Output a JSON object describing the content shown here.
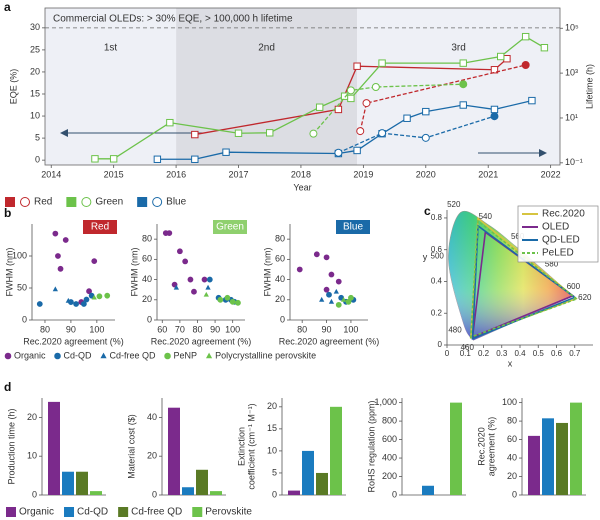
{
  "chart_data": [
    {
      "type": "line",
      "panel": "a",
      "xlabel": "Year",
      "ylabel": "EQE (%)",
      "y2label": "Lifetime (h)",
      "xlim": [
        2013.9,
        2022.15
      ],
      "xticks": [
        2014,
        2015,
        2016,
        2017,
        2018,
        2019,
        2020,
        2021,
        2022
      ],
      "ylim": [
        -1.1,
        34.5
      ],
      "yticks": [
        0,
        5,
        10,
        15,
        20,
        25,
        30
      ],
      "y2lim": [
        0.08,
        800000
      ],
      "y2log": true,
      "y2ticks": [
        {
          "value": 0.1,
          "label": "10⁻¹"
        },
        {
          "value": 10,
          "label": "10¹"
        },
        {
          "value": 1000,
          "label": "10³"
        },
        {
          "value": 100000,
          "label": "10⁵"
        }
      ],
      "eras": [
        {
          "label": "1st",
          "start": 2013.9,
          "end": 2016,
          "color": "#eef0f6"
        },
        {
          "label": "2nd",
          "start": 2016,
          "end": 2018.9,
          "color": "#dcdde3"
        },
        {
          "label": "3rd",
          "start": 2018.9,
          "end": 2022.15,
          "color": "#eef0f6"
        }
      ],
      "annotation": {
        "text": "Commercial OLEDs: > 30% EQE, > 100,000 h lifetime",
        "value": 30
      },
      "series": [
        {
          "name": "Red",
          "color": "#c0282d",
          "marker": "square",
          "line": "solid",
          "x": [
            2016.3,
            2018.6,
            2018.9,
            2021.1,
            2021.3
          ],
          "values": [
            5.8,
            11.5,
            21.3,
            20.5,
            23
          ]
        },
        {
          "color": "#c0282d",
          "marker": "circle",
          "line": "dashed",
          "axis": "y2",
          "x": [
            2018.95,
            2019.05,
            2021.6
          ],
          "values": [
            2.6,
            46,
            2300
          ]
        },
        {
          "name": "Green",
          "color": "#6cc24a",
          "marker": "square",
          "line": "solid",
          "x": [
            2014.7,
            2015,
            2015.9,
            2017,
            2017.5,
            2018.3,
            2018.7,
            2018.8,
            2019.3,
            2020.6,
            2021.2,
            2021.6,
            2021.9
          ],
          "values": [
            0.3,
            0.3,
            8.5,
            6.1,
            6.2,
            12,
            14.5,
            14,
            22,
            22,
            23.5,
            28,
            25.5
          ]
        },
        {
          "color": "#6cc24a",
          "marker": "circle",
          "line": "dashed",
          "axis": "y2",
          "x": [
            2018.2,
            2018.8,
            2019.2,
            2020.6
          ],
          "values": [
            2,
            170,
            240,
            320
          ]
        },
        {
          "name": "Blue",
          "color": "#1a6aa8",
          "marker": "square",
          "line": "solid",
          "x": [
            2015.7,
            2016.3,
            2016.8,
            2018.6,
            2018.9,
            2019.3,
            2019.7,
            2020,
            2020.6,
            2021.1,
            2021.7
          ],
          "values": [
            0.2,
            0.2,
            1.8,
            1.5,
            2.2,
            6,
            9.5,
            11,
            12.5,
            11.5,
            13.5
          ]
        },
        {
          "color": "#1a6aa8",
          "marker": "circle",
          "line": "dashed",
          "axis": "y2",
          "x": [
            2018.6,
            2019.3,
            2020,
            2021.1
          ],
          "values": [
            0.28,
            2.1,
            1.3,
            12
          ]
        }
      ]
    },
    {
      "type": "scatter_group",
      "panel": "b",
      "xlabel": "Rec.2020 agreement (%)",
      "ylabel": "FWHM (nm)",
      "series": [
        {
          "name": "Organic",
          "color": "#7b2a8c",
          "marker": "circle"
        },
        {
          "name": "Cd-QD",
          "color": "#1a6aa8",
          "marker": "circle"
        },
        {
          "name": "Cd-free QD",
          "color": "#1a6aa8",
          "marker": "triangle"
        },
        {
          "name": "PeNP",
          "color": "#6cc24a",
          "marker": "circle"
        },
        {
          "name": "Polycrystalline perovskite",
          "color": "#6cc24a",
          "marker": "triangle"
        }
      ],
      "charts": [
        {
          "title": "Red",
          "title_color": "#c0282d",
          "xlim": [
            75,
            107
          ],
          "xticks": [
            80,
            90,
            100
          ],
          "ylim": [
            0,
            150
          ],
          "yticks": [
            0,
            50,
            100
          ],
          "series": [
            {
              "x": [
                84,
                85,
                86,
                88,
                99,
                97,
                94
              ],
              "y": [
                135,
                100,
                80,
                125,
                92,
                45,
                28
              ]
            },
            {
              "x": [
                78,
                90,
                92,
                95,
                96,
                98
              ],
              "y": [
                25,
                28,
                25,
                25,
                32,
                38
              ]
            },
            {
              "x": [
                84,
                89
              ],
              "y": [
                48,
                30
              ]
            },
            {
              "x": [
                101,
                104
              ],
              "y": [
                37,
                38
              ]
            },
            {
              "x": [
                99
              ],
              "y": [
                35
              ]
            }
          ]
        },
        {
          "title": "Green",
          "title_color": "#8fd06e",
          "xlim": [
            57,
            107
          ],
          "xticks": [
            60,
            70,
            80,
            90,
            100
          ],
          "ylim": [
            0,
            95
          ],
          "yticks": [
            0,
            20,
            40,
            60,
            80
          ],
          "series": [
            {
              "x": [
                62,
                64,
                70,
                73,
                67,
                76,
                78,
                84
              ],
              "y": [
                86,
                86,
                68,
                58,
                35,
                40,
                28,
                40
              ]
            },
            {
              "x": [
                87,
                92,
                96,
                99,
                101
              ],
              "y": [
                40,
                22,
                20,
                20,
                18
              ]
            },
            {
              "x": [
                68,
                86
              ],
              "y": [
                32,
                32
              ]
            },
            {
              "x": [
                93,
                100,
                103,
                97
              ],
              "y": [
                20,
                18,
                17,
                22
              ]
            },
            {
              "x": [
                85
              ],
              "y": [
                25
              ]
            }
          ]
        },
        {
          "title": "Blue",
          "title_color": "#1a6aa8",
          "xlim": [
            75,
            107
          ],
          "xticks": [
            80,
            90,
            100
          ],
          "ylim": [
            0,
            95
          ],
          "yticks": [
            0,
            20,
            40,
            60,
            80
          ],
          "series": [
            {
              "x": [
                79,
                86,
                90,
                90,
                92,
                95
              ],
              "y": [
                50,
                65,
                62,
                30,
                45,
                38
              ]
            },
            {
              "x": [
                91,
                96,
                98,
                101
              ],
              "y": [
                25,
                22,
                18,
                20
              ]
            },
            {
              "x": [
                88,
                92,
                94
              ],
              "y": [
                20,
                18,
                28
              ]
            },
            {
              "x": [
                95,
                99,
                100
              ],
              "y": [
                15,
                18,
                22
              ]
            },
            {
              "x": [
                97
              ],
              "y": [
                20
              ]
            }
          ]
        }
      ]
    },
    {
      "type": "cie",
      "panel": "c",
      "xlabel": "x",
      "ylabel": "y",
      "legend": "upper right",
      "xlim": [
        0,
        0.8
      ],
      "xticks": [
        0,
        0.1,
        0.2,
        0.3,
        0.4,
        0.5,
        0.6,
        0.7
      ],
      "ylim": [
        0,
        0.85
      ],
      "yticks": [
        0,
        0.2,
        0.4,
        0.6,
        0.8
      ],
      "locus": {
        "wavelengths": [
          460,
          480,
          500,
          520,
          540,
          560,
          580,
          600,
          620
        ],
        "x": [
          0.144,
          0.091,
          0.008,
          0.074,
          0.23,
          0.373,
          0.512,
          0.627,
          0.691
        ],
        "y": [
          0.03,
          0.133,
          0.538,
          0.834,
          0.754,
          0.624,
          0.487,
          0.372,
          0.308
        ]
      },
      "series": [
        {
          "name": "Rec.2020",
          "color": "#d6c440",
          "line": "solid",
          "x": [
            0.708,
            0.17,
            0.131
          ],
          "y": [
            0.292,
            0.797,
            0.046
          ]
        },
        {
          "name": "OLED",
          "color": "#7b2a8c",
          "line": "solid",
          "x": [
            0.69,
            0.21,
            0.14
          ],
          "y": [
            0.31,
            0.71,
            0.05
          ]
        },
        {
          "name": "QD-LED",
          "color": "#1a6aa8",
          "line": "solid",
          "x": [
            0.7,
            0.17,
            0.14
          ],
          "y": [
            0.3,
            0.75,
            0.04
          ]
        },
        {
          "name": "PeLED",
          "color": "#6cc24a",
          "line": "dashed",
          "x": [
            0.71,
            0.17,
            0.13
          ],
          "y": [
            0.29,
            0.78,
            0.05
          ]
        }
      ]
    },
    {
      "type": "bar_group",
      "panel": "d",
      "categories": [
        "Organic",
        "Cd-QD",
        "Cd-free QD",
        "Perovskite"
      ],
      "colors": [
        "#7b2a8c",
        "#1a7bbf",
        "#5a7a25",
        "#6cc24a"
      ],
      "charts": [
        {
          "ylabel": [
            "Production time (h)"
          ],
          "ylim": [
            0,
            25
          ],
          "yticks": [
            0,
            10,
            20
          ],
          "values": [
            24,
            6,
            6,
            1
          ]
        },
        {
          "ylabel": [
            "Material cost ($)"
          ],
          "ylim": [
            0,
            50
          ],
          "yticks": [
            0,
            20,
            40
          ],
          "values": [
            45,
            4,
            13,
            2
          ]
        },
        {
          "ylabel": [
            "Extinction",
            "coefficient (cm⁻¹ M⁻¹)"
          ],
          "ylim": [
            0,
            22
          ],
          "yticks": [
            0,
            5,
            10,
            15,
            20
          ],
          "values": [
            1,
            10,
            5,
            20
          ]
        },
        {
          "ylabel": [
            "RoHS regulation (ppm)"
          ],
          "ylim": [
            0,
            1050
          ],
          "yticks": [
            0,
            200,
            400,
            600,
            800,
            {
              "value": 1000,
              "label": "1,000"
            }
          ],
          "values": [
            null,
            100,
            null,
            1000
          ]
        },
        {
          "ylabel": [
            "Rec.2020",
            "agreement (%)"
          ],
          "ylim": [
            0,
            105
          ],
          "yticks": [
            0,
            20,
            40,
            60,
            80,
            100
          ],
          "values": [
            64,
            83,
            78,
            100
          ]
        }
      ]
    }
  ]
}
